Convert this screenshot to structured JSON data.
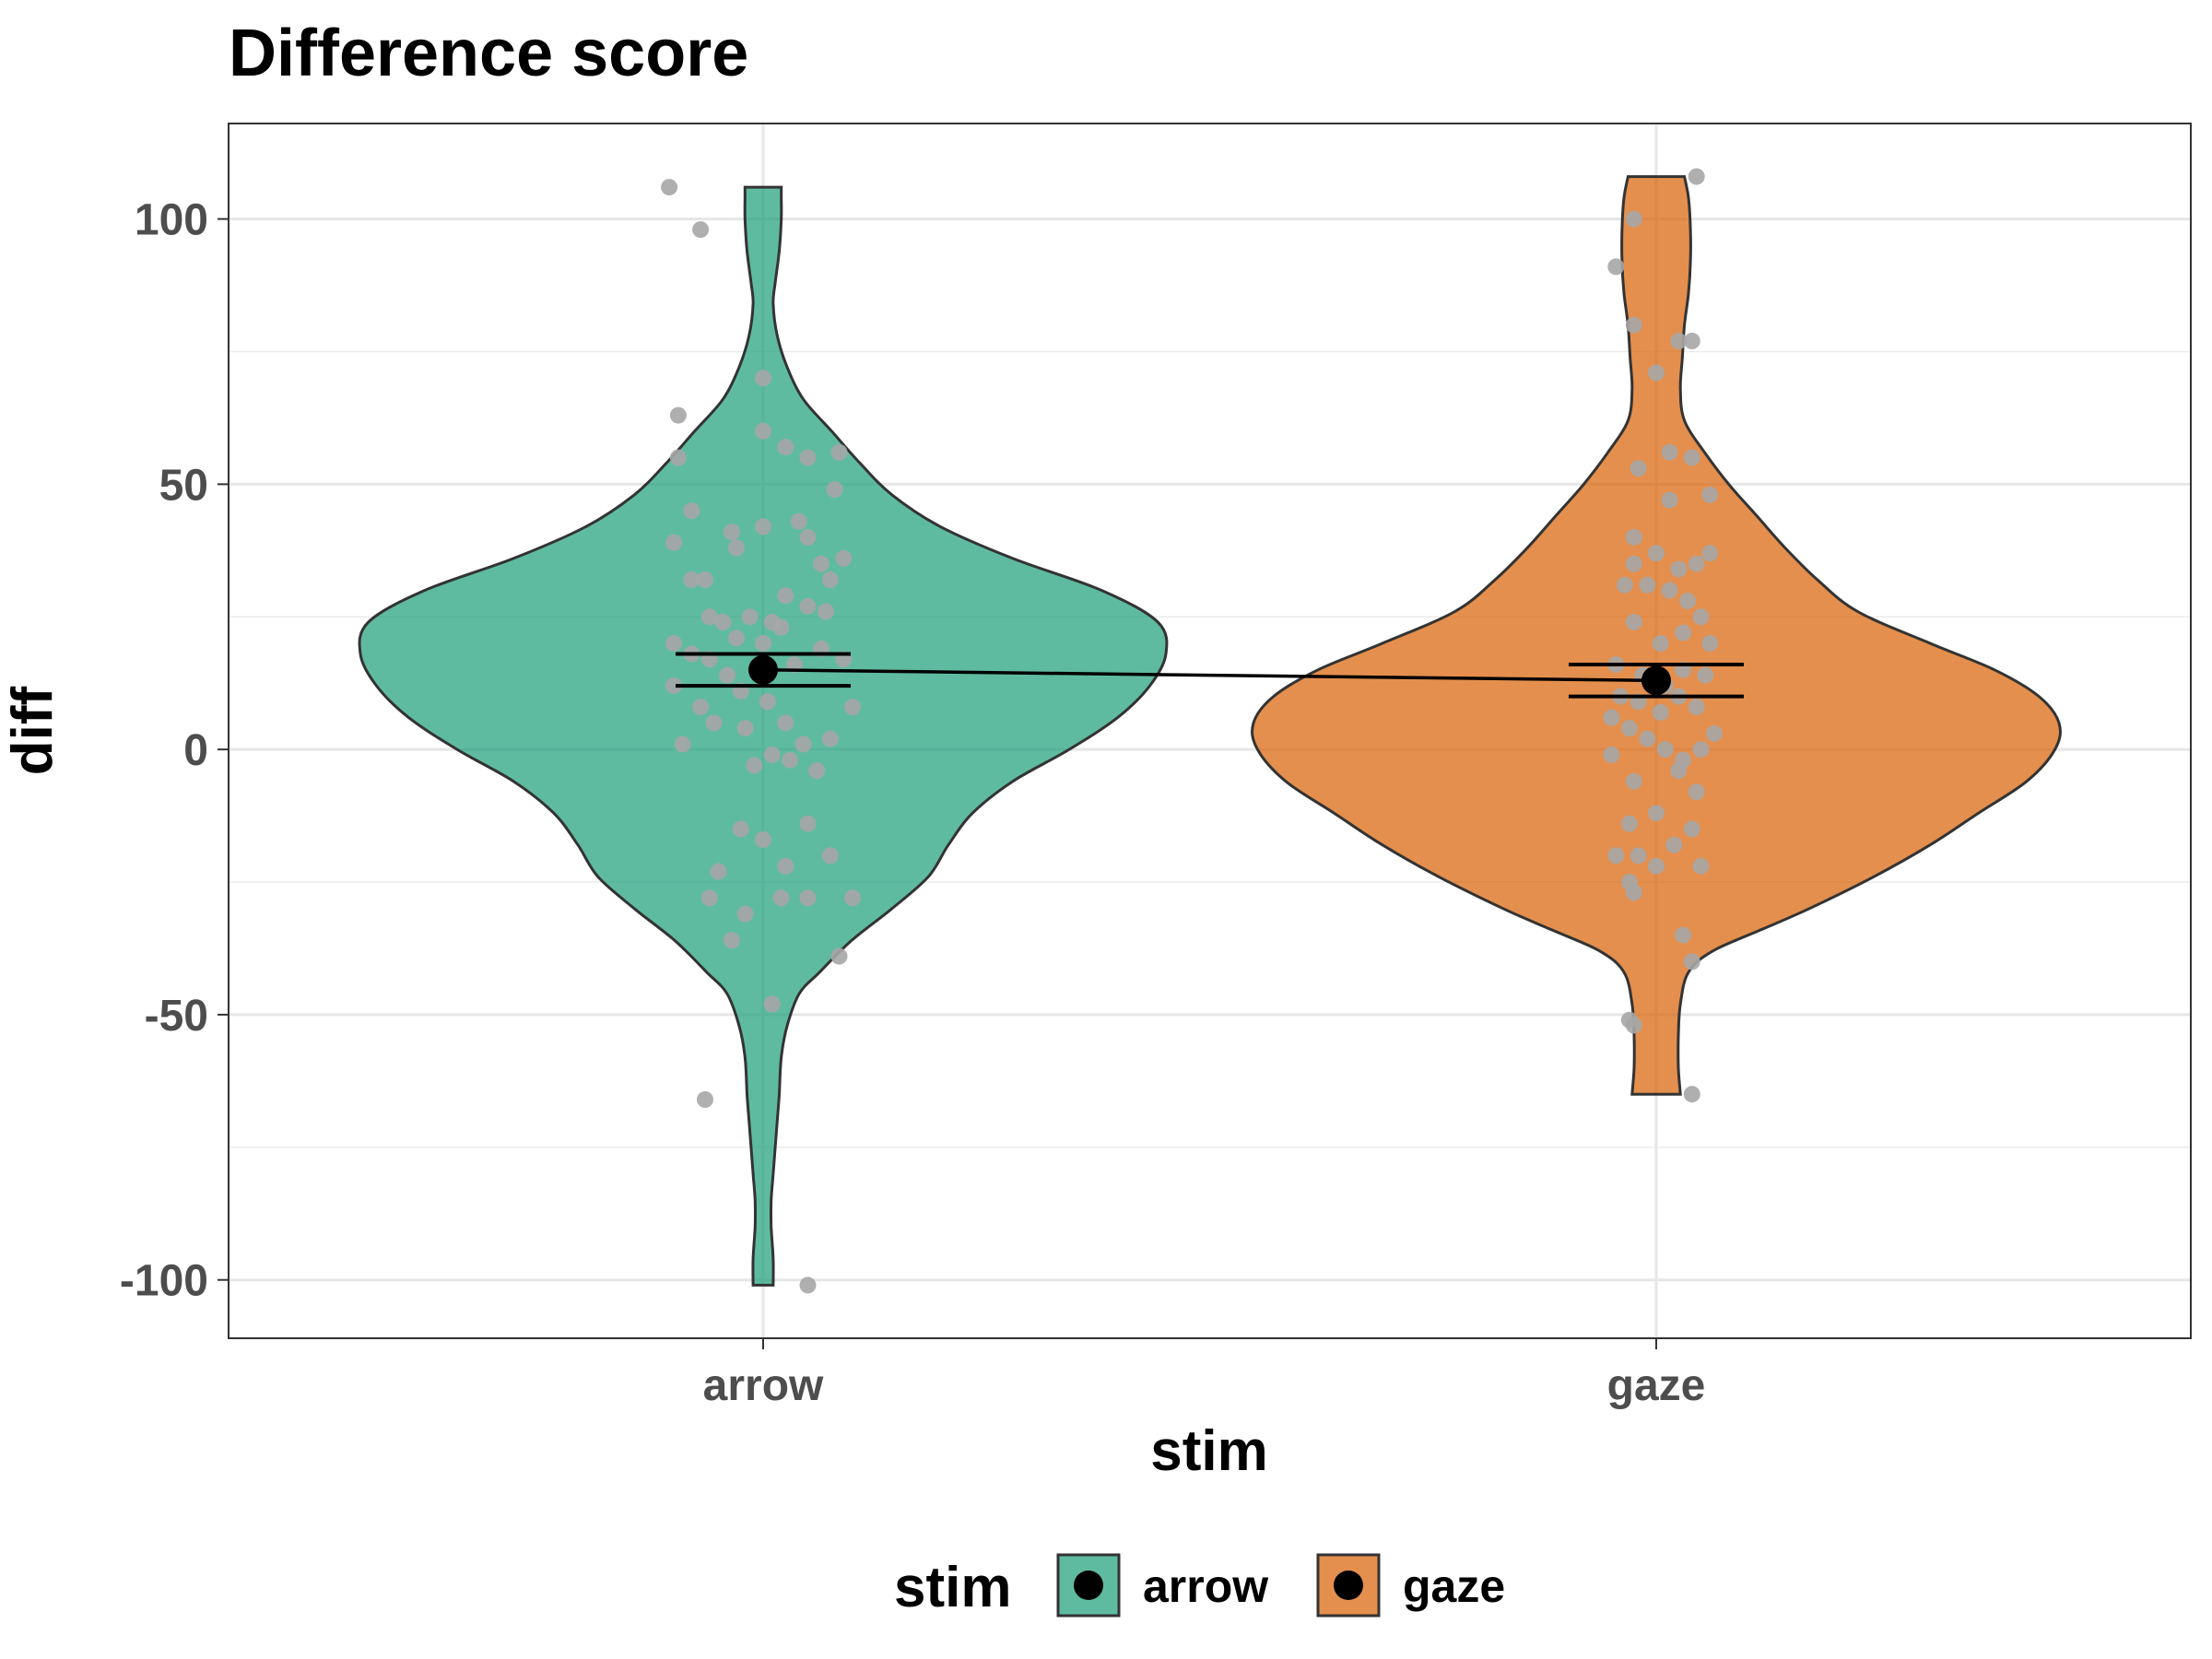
{
  "chart_data": {
    "type": "violin",
    "title": "Difference score",
    "xlabel": "stim",
    "ylabel": "diff",
    "categories": [
      "arrow",
      "gaze"
    ],
    "ylim": [
      -111,
      118
    ],
    "yticks": [
      "100",
      "50",
      "0",
      "-50",
      "-100"
    ],
    "ytick_values": [
      100,
      50,
      0,
      -50,
      -100
    ],
    "grid": true,
    "legend": {
      "title": "stim",
      "position": "bottom",
      "entries": [
        "arrow",
        "gaze"
      ]
    },
    "colors": {
      "arrow": "#1b9e77",
      "gaze": "#d95f02",
      "points": "#a6a6a6",
      "summary": "#000000"
    },
    "series": [
      {
        "name": "arrow",
        "mean": 15,
        "ci": [
          12,
          18
        ],
        "violin_range": [
          -101,
          106
        ],
        "density": [
          [
            -101,
            0.025
          ],
          [
            -96,
            0.025
          ],
          [
            -90,
            0.02
          ],
          [
            -85,
            0.02
          ],
          [
            -80,
            0.025
          ],
          [
            -75,
            0.03
          ],
          [
            -70,
            0.035
          ],
          [
            -65,
            0.04
          ],
          [
            -58,
            0.045
          ],
          [
            -52,
            0.06
          ],
          [
            -46,
            0.09
          ],
          [
            -42,
            0.14
          ],
          [
            -36,
            0.22
          ],
          [
            -30,
            0.32
          ],
          [
            -24,
            0.41
          ],
          [
            -18,
            0.46
          ],
          [
            -12,
            0.52
          ],
          [
            -6,
            0.62
          ],
          [
            0,
            0.76
          ],
          [
            6,
            0.88
          ],
          [
            12,
            0.96
          ],
          [
            18,
            1.0
          ],
          [
            24,
            0.98
          ],
          [
            30,
            0.84
          ],
          [
            36,
            0.62
          ],
          [
            42,
            0.44
          ],
          [
            48,
            0.32
          ],
          [
            54,
            0.24
          ],
          [
            60,
            0.17
          ],
          [
            66,
            0.1
          ],
          [
            72,
            0.06
          ],
          [
            78,
            0.035
          ],
          [
            84,
            0.025
          ],
          [
            88,
            0.03
          ],
          [
            94,
            0.04
          ],
          [
            100,
            0.045
          ],
          [
            104,
            0.045
          ],
          [
            106,
            0.045
          ]
        ],
        "points": [
          [
            -0.21,
            106
          ],
          [
            -0.14,
            98
          ],
          [
            -0.19,
            63
          ],
          [
            -0.19,
            55
          ],
          [
            0.0,
            70
          ],
          [
            0.0,
            60
          ],
          [
            0.05,
            57
          ],
          [
            0.1,
            55
          ],
          [
            0.17,
            56
          ],
          [
            0.16,
            49
          ],
          [
            -0.16,
            45
          ],
          [
            -0.2,
            39
          ],
          [
            -0.16,
            32
          ],
          [
            -0.13,
            32
          ],
          [
            -0.06,
            38
          ],
          [
            -0.07,
            41
          ],
          [
            0.0,
            42
          ],
          [
            0.08,
            43
          ],
          [
            0.1,
            40
          ],
          [
            0.13,
            35
          ],
          [
            0.18,
            36
          ],
          [
            0.15,
            32
          ],
          [
            -0.12,
            25
          ],
          [
            -0.09,
            24
          ],
          [
            -0.06,
            21
          ],
          [
            -0.03,
            25
          ],
          [
            0.02,
            24
          ],
          [
            0.05,
            29
          ],
          [
            0.1,
            27
          ],
          [
            0.14,
            26
          ],
          [
            -0.2,
            20
          ],
          [
            -0.16,
            18
          ],
          [
            -0.12,
            17
          ],
          [
            -0.08,
            14
          ],
          [
            -0.05,
            11
          ],
          [
            0.0,
            20
          ],
          [
            0.04,
            23
          ],
          [
            0.07,
            16
          ],
          [
            0.13,
            19
          ],
          [
            0.18,
            17
          ],
          [
            -0.2,
            12
          ],
          [
            -0.14,
            8
          ],
          [
            -0.11,
            5
          ],
          [
            -0.04,
            4
          ],
          [
            0.01,
            9
          ],
          [
            0.05,
            5
          ],
          [
            0.09,
            1
          ],
          [
            0.15,
            2
          ],
          [
            0.2,
            8
          ],
          [
            -0.18,
            1
          ],
          [
            -0.02,
            -3
          ],
          [
            0.02,
            -1
          ],
          [
            0.06,
            -2
          ],
          [
            0.12,
            -4
          ],
          [
            -0.05,
            -15
          ],
          [
            0.0,
            -17
          ],
          [
            0.05,
            -22
          ],
          [
            0.1,
            -14
          ],
          [
            0.15,
            -20
          ],
          [
            -0.1,
            -23
          ],
          [
            -0.12,
            -28
          ],
          [
            -0.07,
            -36
          ],
          [
            -0.04,
            -31
          ],
          [
            0.04,
            -28
          ],
          [
            0.1,
            -28
          ],
          [
            0.2,
            -28
          ],
          [
            0.02,
            -48
          ],
          [
            0.17,
            -39
          ],
          [
            -0.13,
            -66
          ],
          [
            0.1,
            -101
          ]
        ]
      },
      {
        "name": "gaze",
        "mean": 13,
        "ci": [
          10,
          16
        ],
        "violin_range": [
          -65,
          108
        ],
        "density": [
          [
            -65,
            0.06
          ],
          [
            -60,
            0.055
          ],
          [
            -54,
            0.055
          ],
          [
            -48,
            0.06
          ],
          [
            -42,
            0.08
          ],
          [
            -38,
            0.14
          ],
          [
            -34,
            0.26
          ],
          [
            -30,
            0.38
          ],
          [
            -24,
            0.54
          ],
          [
            -18,
            0.68
          ],
          [
            -12,
            0.8
          ],
          [
            -6,
            0.92
          ],
          [
            0,
            0.99
          ],
          [
            5,
            1.0
          ],
          [
            10,
            0.95
          ],
          [
            15,
            0.84
          ],
          [
            20,
            0.68
          ],
          [
            26,
            0.5
          ],
          [
            32,
            0.4
          ],
          [
            38,
            0.32
          ],
          [
            44,
            0.25
          ],
          [
            50,
            0.18
          ],
          [
            56,
            0.12
          ],
          [
            62,
            0.07
          ],
          [
            68,
            0.06
          ],
          [
            74,
            0.065
          ],
          [
            80,
            0.07
          ],
          [
            86,
            0.08
          ],
          [
            92,
            0.085
          ],
          [
            98,
            0.085
          ],
          [
            104,
            0.08
          ],
          [
            108,
            0.07
          ]
        ],
        "points": [
          [
            0.09,
            108
          ],
          [
            -0.05,
            100
          ],
          [
            -0.09,
            91
          ],
          [
            -0.05,
            80
          ],
          [
            0.05,
            77
          ],
          [
            0.08,
            77
          ],
          [
            0.0,
            71
          ],
          [
            0.03,
            56
          ],
          [
            -0.04,
            53
          ],
          [
            0.08,
            55
          ],
          [
            0.12,
            48
          ],
          [
            -0.05,
            40
          ],
          [
            0.03,
            47
          ],
          [
            0.0,
            37
          ],
          [
            -0.05,
            35
          ],
          [
            0.05,
            34
          ],
          [
            0.09,
            35
          ],
          [
            0.12,
            37
          ],
          [
            -0.07,
            31
          ],
          [
            -0.02,
            31
          ],
          [
            0.03,
            30
          ],
          [
            0.07,
            28
          ],
          [
            0.1,
            25
          ],
          [
            -0.05,
            24
          ],
          [
            0.01,
            20
          ],
          [
            0.06,
            22
          ],
          [
            0.12,
            20
          ],
          [
            -0.09,
            16
          ],
          [
            -0.03,
            14
          ],
          [
            0.02,
            12
          ],
          [
            0.06,
            15
          ],
          [
            0.11,
            14
          ],
          [
            -0.08,
            10
          ],
          [
            -0.04,
            9
          ],
          [
            0.01,
            7
          ],
          [
            0.05,
            10
          ],
          [
            0.09,
            8
          ],
          [
            0.13,
            3
          ],
          [
            -0.1,
            6
          ],
          [
            -0.06,
            4
          ],
          [
            -0.02,
            2
          ],
          [
            0.02,
            0
          ],
          [
            0.06,
            -2
          ],
          [
            0.1,
            0
          ],
          [
            -0.1,
            -1
          ],
          [
            -0.05,
            -6
          ],
          [
            0.0,
            -12
          ],
          [
            0.05,
            -4
          ],
          [
            0.09,
            -8
          ],
          [
            -0.06,
            -14
          ],
          [
            -0.09,
            -20
          ],
          [
            -0.04,
            -20
          ],
          [
            0.0,
            -22
          ],
          [
            0.04,
            -18
          ],
          [
            0.08,
            -15
          ],
          [
            0.1,
            -22
          ],
          [
            -0.06,
            -25
          ],
          [
            -0.05,
            -27
          ],
          [
            0.06,
            -35
          ],
          [
            0.08,
            -40
          ],
          [
            -0.06,
            -51
          ],
          [
            -0.05,
            -52
          ],
          [
            0.08,
            -65
          ]
        ]
      }
    ]
  }
}
